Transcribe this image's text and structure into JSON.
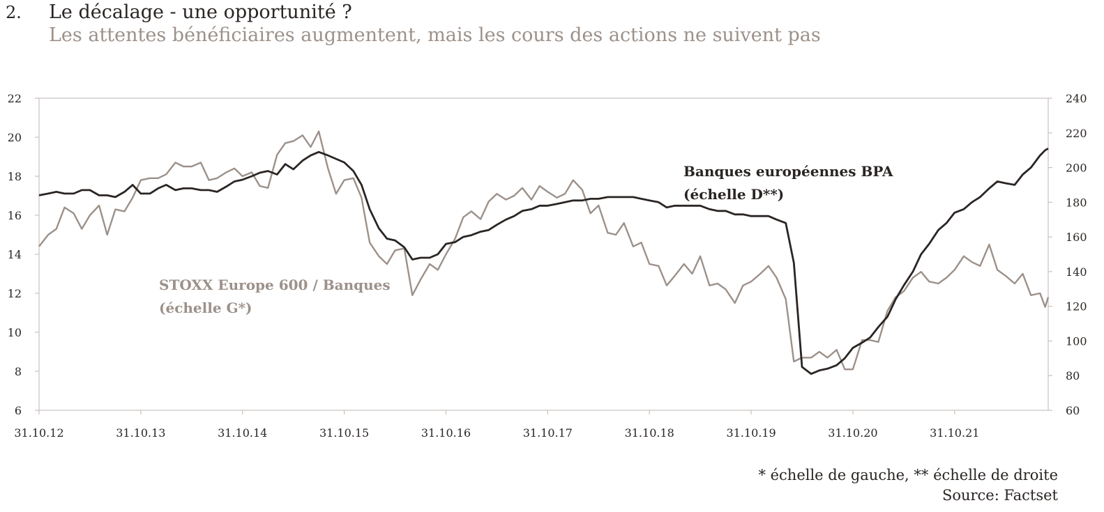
{
  "header": {
    "number": "2.",
    "title": "Le décalage - une opportunité ?",
    "subtitle": "Les attentes bénéficiaires augmentent, mais les cours des actions ne suivent pas"
  },
  "footer": {
    "note": "* échelle de gauche, ** échelle de droite",
    "source": "Source: Factset"
  },
  "colors": {
    "stoxx": "#9c918a",
    "bpa": "#2a2523",
    "frame": "#c8c2bd",
    "text": "#2a2523"
  },
  "chart_data": {
    "type": "line",
    "x_tick_labels": [
      "31.10.12",
      "31.10.13",
      "31.10.14",
      "31.10.15",
      "31.10.16",
      "31.10.17",
      "31.10.18",
      "31.10.19",
      "31.10.20",
      "31.10.21"
    ],
    "x_range": [
      2012.83,
      2022.75
    ],
    "y_left": {
      "range": [
        6,
        22
      ],
      "ticks": [
        6,
        8,
        10,
        12,
        14,
        16,
        18,
        20,
        22
      ]
    },
    "y_right": {
      "range": [
        60,
        240
      ],
      "ticks": [
        60,
        80,
        100,
        120,
        140,
        160,
        180,
        200,
        220,
        240
      ]
    },
    "grid": false,
    "series": [
      {
        "name": "STOXX Europe 600 / Banques",
        "label_line1": "STOXX Europe 600 / Banques",
        "label_line2": "(échelle G*)",
        "axis": "left",
        "points": [
          [
            2012.83,
            14.4
          ],
          [
            2012.92,
            15.0
          ],
          [
            2013.0,
            15.3
          ],
          [
            2013.08,
            16.4
          ],
          [
            2013.17,
            16.1
          ],
          [
            2013.25,
            15.3
          ],
          [
            2013.33,
            16.0
          ],
          [
            2013.42,
            16.5
          ],
          [
            2013.5,
            15.0
          ],
          [
            2013.58,
            16.3
          ],
          [
            2013.67,
            16.2
          ],
          [
            2013.75,
            16.9
          ],
          [
            2013.83,
            17.8
          ],
          [
            2013.92,
            17.9
          ],
          [
            2014.0,
            17.9
          ],
          [
            2014.08,
            18.1
          ],
          [
            2014.17,
            18.7
          ],
          [
            2014.25,
            18.5
          ],
          [
            2014.33,
            18.5
          ],
          [
            2014.42,
            18.7
          ],
          [
            2014.5,
            17.8
          ],
          [
            2014.58,
            17.9
          ],
          [
            2014.67,
            18.2
          ],
          [
            2014.75,
            18.4
          ],
          [
            2014.83,
            18.0
          ],
          [
            2014.92,
            18.2
          ],
          [
            2015.0,
            17.5
          ],
          [
            2015.08,
            17.4
          ],
          [
            2015.17,
            19.1
          ],
          [
            2015.25,
            19.7
          ],
          [
            2015.33,
            19.8
          ],
          [
            2015.42,
            20.1
          ],
          [
            2015.5,
            19.5
          ],
          [
            2015.58,
            20.3
          ],
          [
            2015.67,
            18.4
          ],
          [
            2015.75,
            17.1
          ],
          [
            2015.83,
            17.8
          ],
          [
            2015.92,
            17.9
          ],
          [
            2016.0,
            16.9
          ],
          [
            2016.08,
            14.6
          ],
          [
            2016.17,
            13.9
          ],
          [
            2016.25,
            13.5
          ],
          [
            2016.33,
            14.2
          ],
          [
            2016.42,
            14.3
          ],
          [
            2016.5,
            11.9
          ],
          [
            2016.58,
            12.7
          ],
          [
            2016.67,
            13.5
          ],
          [
            2016.75,
            13.2
          ],
          [
            2016.83,
            14.0
          ],
          [
            2016.92,
            14.8
          ],
          [
            2017.0,
            15.9
          ],
          [
            2017.08,
            16.2
          ],
          [
            2017.17,
            15.8
          ],
          [
            2017.25,
            16.7
          ],
          [
            2017.33,
            17.1
          ],
          [
            2017.42,
            16.8
          ],
          [
            2017.5,
            17.0
          ],
          [
            2017.58,
            17.4
          ],
          [
            2017.67,
            16.8
          ],
          [
            2017.75,
            17.5
          ],
          [
            2017.83,
            17.2
          ],
          [
            2017.92,
            16.9
          ],
          [
            2018.0,
            17.1
          ],
          [
            2018.08,
            17.8
          ],
          [
            2018.17,
            17.3
          ],
          [
            2018.25,
            16.1
          ],
          [
            2018.33,
            16.5
          ],
          [
            2018.42,
            15.1
          ],
          [
            2018.5,
            15.0
          ],
          [
            2018.58,
            15.6
          ],
          [
            2018.67,
            14.4
          ],
          [
            2018.75,
            14.6
          ],
          [
            2018.83,
            13.5
          ],
          [
            2018.92,
            13.4
          ],
          [
            2019.0,
            12.4
          ],
          [
            2019.08,
            12.9
          ],
          [
            2019.17,
            13.5
          ],
          [
            2019.25,
            13.0
          ],
          [
            2019.33,
            13.9
          ],
          [
            2019.42,
            12.4
          ],
          [
            2019.5,
            12.5
          ],
          [
            2019.58,
            12.2
          ],
          [
            2019.67,
            11.5
          ],
          [
            2019.75,
            12.4
          ],
          [
            2019.83,
            12.6
          ],
          [
            2019.92,
            13.0
          ],
          [
            2020.0,
            13.4
          ],
          [
            2020.08,
            12.8
          ],
          [
            2020.17,
            11.7
          ],
          [
            2020.25,
            8.5
          ],
          [
            2020.33,
            8.7
          ],
          [
            2020.42,
            8.7
          ],
          [
            2020.5,
            9.0
          ],
          [
            2020.58,
            8.7
          ],
          [
            2020.67,
            9.1
          ],
          [
            2020.75,
            8.1
          ],
          [
            2020.83,
            8.1
          ],
          [
            2020.92,
            9.6
          ],
          [
            2021.0,
            9.6
          ],
          [
            2021.08,
            9.5
          ],
          [
            2021.17,
            11.1
          ],
          [
            2021.25,
            11.8
          ],
          [
            2021.33,
            12.1
          ],
          [
            2021.42,
            12.8
          ],
          [
            2021.5,
            13.1
          ],
          [
            2021.58,
            12.6
          ],
          [
            2021.67,
            12.5
          ],
          [
            2021.75,
            12.8
          ],
          [
            2021.83,
            13.2
          ],
          [
            2021.92,
            13.9
          ],
          [
            2022.0,
            13.6
          ],
          [
            2022.08,
            13.4
          ],
          [
            2022.17,
            14.5
          ],
          [
            2022.25,
            13.2
          ],
          [
            2022.33,
            12.9
          ],
          [
            2022.42,
            12.5
          ],
          [
            2022.5,
            13.0
          ],
          [
            2022.58,
            11.9
          ],
          [
            2022.67,
            12.0
          ],
          [
            2022.72,
            11.3
          ],
          [
            2022.75,
            11.8
          ]
        ]
      },
      {
        "name": "Banques européennes BPA",
        "label_line1": "Banques européennes BPA",
        "label_line2": "(échelle D**)",
        "axis": "right",
        "points": [
          [
            2012.83,
            184
          ],
          [
            2012.92,
            185
          ],
          [
            2013.0,
            186
          ],
          [
            2013.08,
            185
          ],
          [
            2013.17,
            185
          ],
          [
            2013.25,
            187
          ],
          [
            2013.33,
            187
          ],
          [
            2013.42,
            184
          ],
          [
            2013.5,
            184
          ],
          [
            2013.58,
            183
          ],
          [
            2013.67,
            186
          ],
          [
            2013.75,
            190
          ],
          [
            2013.83,
            185
          ],
          [
            2013.92,
            185
          ],
          [
            2014.0,
            188
          ],
          [
            2014.08,
            190
          ],
          [
            2014.17,
            187
          ],
          [
            2014.25,
            188
          ],
          [
            2014.33,
            188
          ],
          [
            2014.42,
            187
          ],
          [
            2014.5,
            187
          ],
          [
            2014.58,
            186
          ],
          [
            2014.67,
            189
          ],
          [
            2014.75,
            192
          ],
          [
            2014.83,
            193
          ],
          [
            2014.92,
            195
          ],
          [
            2015.0,
            197
          ],
          [
            2015.08,
            198
          ],
          [
            2015.17,
            196
          ],
          [
            2015.25,
            202
          ],
          [
            2015.33,
            199
          ],
          [
            2015.42,
            204
          ],
          [
            2015.5,
            207
          ],
          [
            2015.58,
            209
          ],
          [
            2015.67,
            207
          ],
          [
            2015.75,
            205
          ],
          [
            2015.83,
            203
          ],
          [
            2015.92,
            198
          ],
          [
            2016.0,
            190
          ],
          [
            2016.08,
            176
          ],
          [
            2016.17,
            165
          ],
          [
            2016.25,
            159
          ],
          [
            2016.33,
            158
          ],
          [
            2016.42,
            154
          ],
          [
            2016.5,
            147
          ],
          [
            2016.58,
            148
          ],
          [
            2016.67,
            148
          ],
          [
            2016.75,
            150
          ],
          [
            2016.83,
            156
          ],
          [
            2016.92,
            157
          ],
          [
            2017.0,
            160
          ],
          [
            2017.08,
            161
          ],
          [
            2017.17,
            163
          ],
          [
            2017.25,
            164
          ],
          [
            2017.33,
            167
          ],
          [
            2017.42,
            170
          ],
          [
            2017.5,
            172
          ],
          [
            2017.58,
            175
          ],
          [
            2017.67,
            176
          ],
          [
            2017.75,
            178
          ],
          [
            2017.83,
            178
          ],
          [
            2017.92,
            179
          ],
          [
            2018.0,
            180
          ],
          [
            2018.08,
            181
          ],
          [
            2018.17,
            181
          ],
          [
            2018.25,
            182
          ],
          [
            2018.33,
            182
          ],
          [
            2018.42,
            183
          ],
          [
            2018.5,
            183
          ],
          [
            2018.58,
            183
          ],
          [
            2018.67,
            183
          ],
          [
            2018.75,
            182
          ],
          [
            2018.83,
            181
          ],
          [
            2018.92,
            180
          ],
          [
            2019.0,
            177
          ],
          [
            2019.08,
            178
          ],
          [
            2019.17,
            178
          ],
          [
            2019.25,
            178
          ],
          [
            2019.33,
            178
          ],
          [
            2019.42,
            176
          ],
          [
            2019.5,
            175
          ],
          [
            2019.58,
            175
          ],
          [
            2019.67,
            173
          ],
          [
            2019.75,
            173
          ],
          [
            2019.83,
            172
          ],
          [
            2019.92,
            172
          ],
          [
            2020.0,
            172
          ],
          [
            2020.08,
            170
          ],
          [
            2020.17,
            168
          ],
          [
            2020.25,
            145
          ],
          [
            2020.33,
            85
          ],
          [
            2020.42,
            81
          ],
          [
            2020.5,
            83
          ],
          [
            2020.58,
            84
          ],
          [
            2020.67,
            86
          ],
          [
            2020.75,
            90
          ],
          [
            2020.83,
            96
          ],
          [
            2020.92,
            99
          ],
          [
            2021.0,
            102
          ],
          [
            2021.08,
            108
          ],
          [
            2021.17,
            114
          ],
          [
            2021.25,
            124
          ],
          [
            2021.33,
            132
          ],
          [
            2021.42,
            140
          ],
          [
            2021.5,
            150
          ],
          [
            2021.58,
            156
          ],
          [
            2021.67,
            164
          ],
          [
            2021.75,
            168
          ],
          [
            2021.83,
            174
          ],
          [
            2021.92,
            176
          ],
          [
            2022.0,
            180
          ],
          [
            2022.08,
            183
          ],
          [
            2022.17,
            188
          ],
          [
            2022.25,
            192
          ],
          [
            2022.33,
            191
          ],
          [
            2022.42,
            190
          ],
          [
            2022.5,
            196
          ],
          [
            2022.58,
            200
          ],
          [
            2022.67,
            207
          ],
          [
            2022.72,
            210
          ],
          [
            2022.75,
            211
          ]
        ]
      }
    ]
  }
}
